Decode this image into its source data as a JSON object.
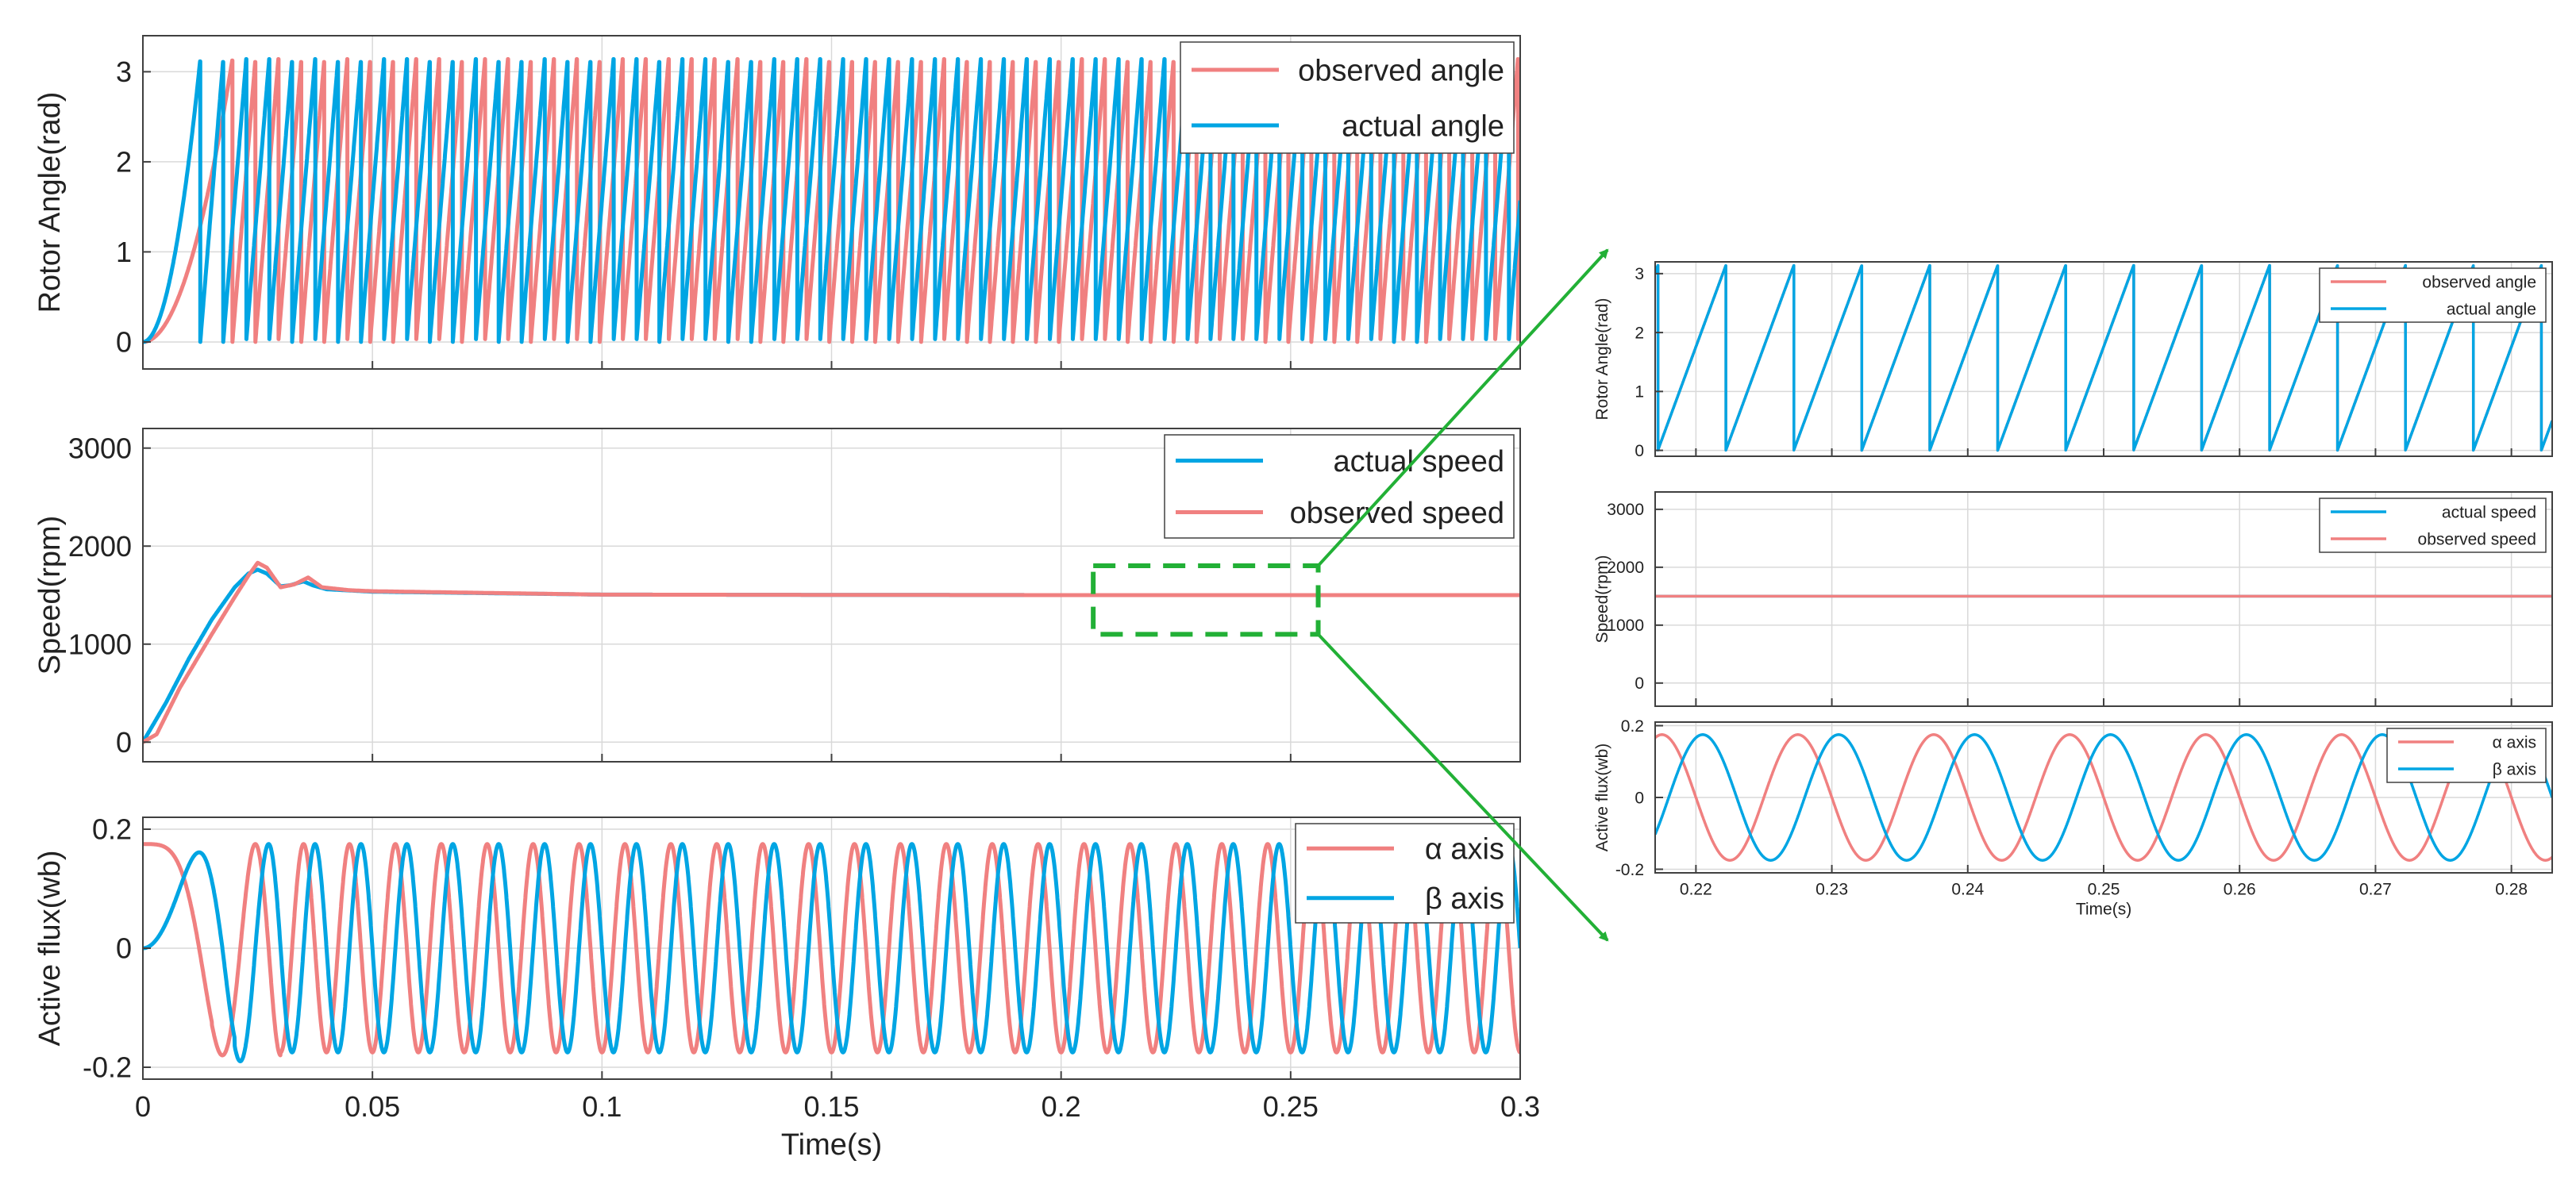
{
  "colors": {
    "observed": "#f08080",
    "actual": "#00a5e3",
    "grid": "#d9d9d9",
    "axis": "#404040",
    "zoom_box": "#22b036",
    "arrow": "#22b036"
  },
  "chart_data": [
    {
      "id": "left-rotor-angle",
      "type": "line",
      "xlim": [
        0,
        0.3
      ],
      "ylim": [
        -0.3,
        3.4
      ],
      "yticks": [
        0,
        1,
        2,
        3
      ],
      "ytick_labels": [
        "0",
        "1",
        "2",
        "3"
      ],
      "xticks": [
        0,
        0.05,
        0.1,
        0.15,
        0.2,
        0.25,
        0.3
      ],
      "xtick_labels": [],
      "ylabel": "Rotor Angle(rad)",
      "xlabel": "",
      "grid": true,
      "legend": "top-right",
      "series": [
        {
          "name": "observed angle",
          "color_key": "observed",
          "model": "angle",
          "first_wrap_s": 0.0195,
          "amplitude_rad": 3.14,
          "electrical_freq_hz": 100
        },
        {
          "name": "actual angle",
          "color_key": "actual",
          "model": "angle",
          "first_wrap_s": 0.0125,
          "amplitude_rad": 3.14,
          "electrical_freq_hz": 100
        }
      ]
    },
    {
      "id": "left-speed",
      "type": "line",
      "xlim": [
        0,
        0.3
      ],
      "ylim": [
        -200,
        3200
      ],
      "yticks": [
        0,
        1000,
        2000,
        3000
      ],
      "ytick_labels": [
        "0",
        "1000",
        "2000",
        "3000"
      ],
      "xticks": [
        0,
        0.05,
        0.1,
        0.15,
        0.2,
        0.25,
        0.3
      ],
      "xtick_labels": [],
      "ylabel": "Speed(rpm)",
      "xlabel": "",
      "grid": true,
      "legend": "top-right",
      "series": [
        {
          "name": "actual speed",
          "color_key": "actual",
          "model": "speed",
          "points": [
            [
              0,
              0
            ],
            [
              0.005,
              400
            ],
            [
              0.01,
              850
            ],
            [
              0.015,
              1250
            ],
            [
              0.02,
              1580
            ],
            [
              0.023,
              1720
            ],
            [
              0.025,
              1760
            ],
            [
              0.027,
              1720
            ],
            [
              0.03,
              1590
            ],
            [
              0.032,
              1600
            ],
            [
              0.035,
              1640
            ],
            [
              0.037,
              1600
            ],
            [
              0.04,
              1560
            ],
            [
              0.05,
              1535
            ],
            [
              0.1,
              1505
            ],
            [
              0.2,
              1500
            ],
            [
              0.3,
              1500
            ]
          ]
        },
        {
          "name": "observed speed",
          "color_key": "observed",
          "model": "speed",
          "points": [
            [
              0,
              0
            ],
            [
              0.003,
              80
            ],
            [
              0.008,
              550
            ],
            [
              0.015,
              1100
            ],
            [
              0.02,
              1480
            ],
            [
              0.023,
              1700
            ],
            [
              0.025,
              1830
            ],
            [
              0.027,
              1780
            ],
            [
              0.03,
              1580
            ],
            [
              0.033,
              1610
            ],
            [
              0.036,
              1680
            ],
            [
              0.039,
              1580
            ],
            [
              0.045,
              1550
            ],
            [
              0.05,
              1540
            ],
            [
              0.1,
              1505
            ],
            [
              0.2,
              1500
            ],
            [
              0.3,
              1500
            ]
          ]
        }
      ]
    },
    {
      "id": "left-flux",
      "type": "line",
      "xlim": [
        0,
        0.3
      ],
      "ylim": [
        -0.22,
        0.22
      ],
      "yticks": [
        -0.2,
        0,
        0.2
      ],
      "ytick_labels": [
        "-0.2",
        "0",
        "0.2"
      ],
      "xticks": [
        0,
        0.05,
        0.1,
        0.15,
        0.2,
        0.25,
        0.3
      ],
      "xtick_labels": [
        "0",
        "0.05",
        "0.1",
        "0.15",
        "0.2",
        "0.25",
        "0.3"
      ],
      "ylabel": "Active flux(wb)",
      "xlabel": "Time(s)",
      "grid": true,
      "legend": "top-right",
      "series": [
        {
          "name": "α axis",
          "color_key": "observed",
          "model": "flux",
          "amplitude_wb": 0.175,
          "electrical_freq_hz": 100,
          "start_value": 0.175,
          "start_phase": "cos",
          "overshoot_min_wb": -0.18
        },
        {
          "name": "β axis",
          "color_key": "actual",
          "model": "flux",
          "amplitude_wb": 0.175,
          "electrical_freq_hz": 100,
          "start_value": 0,
          "start_phase": "sin",
          "overshoot_min_wb": -0.19
        }
      ]
    },
    {
      "id": "zoom-rotor-angle",
      "type": "line",
      "xlim": [
        0.217,
        0.283
      ],
      "ylim": [
        -0.1,
        3.2
      ],
      "yticks": [
        0,
        1,
        2,
        3
      ],
      "ytick_labels": [
        "0",
        "1",
        "2",
        "3"
      ],
      "xticks": [
        0.22,
        0.23,
        0.24,
        0.25,
        0.26,
        0.27,
        0.28
      ],
      "xtick_labels": [],
      "ylabel": "Rotor Angle(rad)",
      "xlabel": "",
      "grid": true,
      "legend": "top-right",
      "series": [
        {
          "name": "observed angle",
          "color_key": "observed",
          "model": "angle_steady",
          "period_s": 0.005,
          "phase_s": 0.2172,
          "amplitude_rad": 3.14
        },
        {
          "name": "actual angle",
          "color_key": "actual",
          "model": "angle_steady",
          "period_s": 0.005,
          "phase_s": 0.2172,
          "amplitude_rad": 3.14
        }
      ]
    },
    {
      "id": "zoom-speed",
      "type": "line",
      "xlim": [
        0.217,
        0.283
      ],
      "ylim": [
        -400,
        3300
      ],
      "yticks": [
        0,
        1000,
        2000,
        3000
      ],
      "ytick_labels": [
        "0",
        "1000",
        "2000",
        "3000"
      ],
      "xticks": [
        0.22,
        0.23,
        0.24,
        0.25,
        0.26,
        0.27,
        0.28
      ],
      "xtick_labels": [],
      "ylabel": "Speed(rpm)",
      "xlabel": "",
      "grid": true,
      "legend": "top-right",
      "series": [
        {
          "name": "actual speed",
          "color_key": "actual",
          "model": "const",
          "value": 1500
        },
        {
          "name": "observed speed",
          "color_key": "observed",
          "model": "const",
          "value": 1500
        }
      ]
    },
    {
      "id": "zoom-flux",
      "type": "line",
      "xlim": [
        0.217,
        0.283
      ],
      "ylim": [
        -0.21,
        0.21
      ],
      "yticks": [
        -0.2,
        0,
        0.2
      ],
      "ytick_labels": [
        "-0.2",
        "0",
        "0.2"
      ],
      "xticks": [
        0.22,
        0.23,
        0.24,
        0.25,
        0.26,
        0.27,
        0.28
      ],
      "xtick_labels": [
        "0.22",
        "0.23",
        "0.24",
        "0.25",
        "0.26",
        "0.27",
        "0.28"
      ],
      "ylabel": "Active flux(wb)",
      "xlabel": "Time(s)",
      "grid": true,
      "legend": "top-right",
      "series": [
        {
          "name": "α axis",
          "color_key": "observed",
          "model": "flux_steady",
          "amplitude_wb": 0.175,
          "period_s": 0.01,
          "peak_at_s": 0.2175
        },
        {
          "name": "β axis",
          "color_key": "actual",
          "model": "flux_steady",
          "amplitude_wb": 0.175,
          "period_s": 0.01,
          "peak_at_s": 0.2205
        }
      ]
    }
  ],
  "zoom_region": {
    "x_from_s": 0.207,
    "x_to_s": 0.256,
    "y_from_rpm": 1100,
    "y_to_rpm": 1800
  }
}
